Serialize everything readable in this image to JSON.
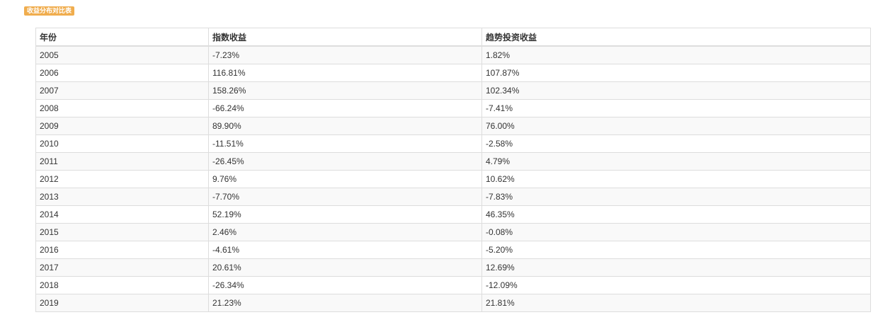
{
  "badge": {
    "label": "收益分布对比表",
    "color": "#f0ad4e"
  },
  "table": {
    "headers": [
      "年份",
      "指数收益",
      "趋势投资收益"
    ],
    "rows": [
      [
        "2005",
        "-7.23%",
        "1.82%"
      ],
      [
        "2006",
        "116.81%",
        "107.87%"
      ],
      [
        "2007",
        "158.26%",
        "102.34%"
      ],
      [
        "2008",
        "-66.24%",
        "-7.41%"
      ],
      [
        "2009",
        "89.90%",
        "76.00%"
      ],
      [
        "2010",
        "-11.51%",
        "-2.58%"
      ],
      [
        "2011",
        "-26.45%",
        "4.79%"
      ],
      [
        "2012",
        "9.76%",
        "10.62%"
      ],
      [
        "2013",
        "-7.70%",
        "-7.83%"
      ],
      [
        "2014",
        "52.19%",
        "46.35%"
      ],
      [
        "2015",
        "2.46%",
        "-0.08%"
      ],
      [
        "2016",
        "-4.61%",
        "-5.20%"
      ],
      [
        "2017",
        "20.61%",
        "12.69%"
      ],
      [
        "2018",
        "-26.34%",
        "-12.09%"
      ],
      [
        "2019",
        "21.23%",
        "21.81%"
      ]
    ]
  }
}
